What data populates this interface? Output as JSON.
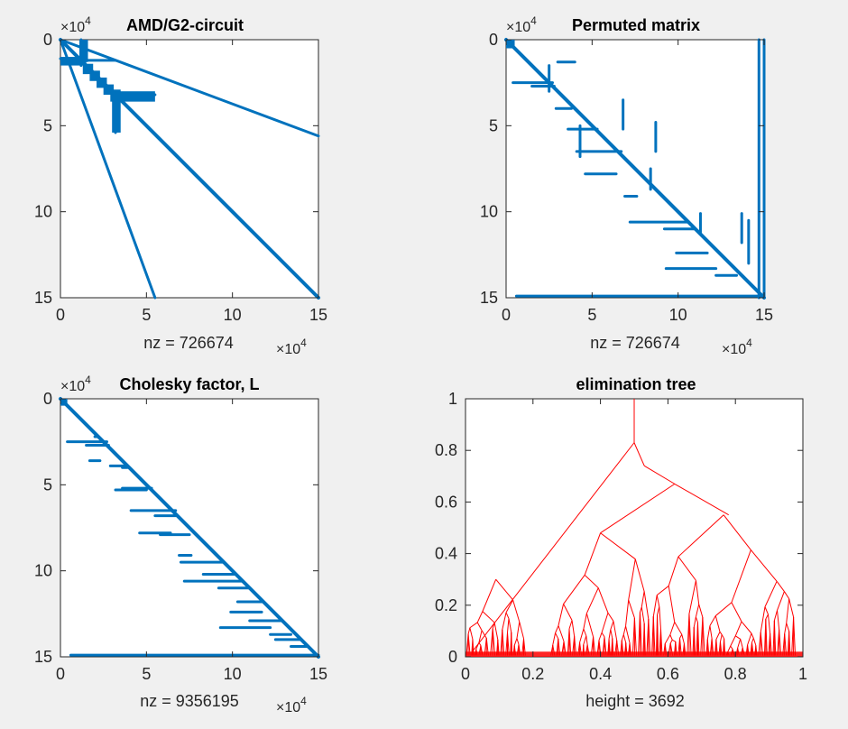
{
  "chart_data": [
    {
      "type": "scatter",
      "title": "AMD/G2-circuit",
      "xlabel": "nz = 726674",
      "x_exponent": "4",
      "y_exponent": "4",
      "xlim": [
        0,
        15
      ],
      "ylim": [
        0,
        15
      ],
      "y_reversed": true,
      "xticks": [
        0,
        5,
        10,
        15
      ],
      "yticks": [
        0,
        5,
        10,
        15
      ],
      "marker_color": "#0072bd",
      "segments": [
        [
          0,
          0,
          15,
          15
        ],
        [
          0,
          0,
          5.5,
          15
        ],
        [
          0,
          0,
          15,
          5.6
        ],
        [
          0.8,
          1.2,
          3.2,
          1.2
        ],
        [
          3.2,
          3.2,
          5.5,
          3.2
        ],
        [
          3.2,
          3.2,
          3.2,
          5.4
        ],
        [
          1.2,
          0,
          1.2,
          1.5
        ],
        [
          0,
          1.1,
          1.5,
          1.1
        ]
      ],
      "blocks": [
        [
          0,
          1.0,
          1.5,
          1.5
        ],
        [
          1.1,
          0,
          1.6,
          1.3
        ],
        [
          1.3,
          1.4,
          1.9,
          2.0
        ],
        [
          1.7,
          1.8,
          2.3,
          2.4
        ],
        [
          2.1,
          2.2,
          2.7,
          2.8
        ],
        [
          2.5,
          2.6,
          3.1,
          3.2
        ],
        [
          2.9,
          2.9,
          3.5,
          3.6
        ],
        [
          3.0,
          3.0,
          5.5,
          3.6
        ],
        [
          3.0,
          3.0,
          3.5,
          5.4
        ]
      ]
    },
    {
      "type": "scatter",
      "title": "Permuted matrix",
      "xlabel": "nz = 726674",
      "x_exponent": "4",
      "y_exponent": "4",
      "xlim": [
        0,
        15
      ],
      "ylim": [
        0,
        15
      ],
      "y_reversed": true,
      "xticks": [
        0,
        5,
        10,
        15
      ],
      "yticks": [
        0,
        5,
        10,
        15
      ],
      "marker_color": "#0072bd",
      "segments": [
        [
          0,
          0,
          15,
          15
        ],
        [
          0.6,
          14.9,
          15,
          14.9
        ],
        [
          15,
          0,
          15,
          15
        ],
        [
          14.7,
          0,
          14.7,
          15
        ],
        [
          0.4,
          2.5,
          2.7,
          2.5
        ],
        [
          1.5,
          2.7,
          2.8,
          2.7
        ],
        [
          2.9,
          4.0,
          3.8,
          4.0
        ],
        [
          3.6,
          5.2,
          5.3,
          5.2
        ],
        [
          4.1,
          6.5,
          6.7,
          6.5
        ],
        [
          4.6,
          7.8,
          6.4,
          7.8
        ],
        [
          6.9,
          9.1,
          7.6,
          9.1
        ],
        [
          7.2,
          10.6,
          10.6,
          10.6
        ],
        [
          9.2,
          11.0,
          11.0,
          11.0
        ],
        [
          9.9,
          12.4,
          11.7,
          12.4
        ],
        [
          9.3,
          13.3,
          12.2,
          13.3
        ],
        [
          12.2,
          13.7,
          13.4,
          13.7
        ],
        [
          4.3,
          5.0,
          4.3,
          6.8
        ],
        [
          6.8,
          3.5,
          6.8,
          5.2
        ],
        [
          2.5,
          1.5,
          2.5,
          3.0
        ],
        [
          8.4,
          7.5,
          8.4,
          8.7
        ],
        [
          11.3,
          10.1,
          11.3,
          11.2
        ],
        [
          13.7,
          10.1,
          13.7,
          11.8
        ],
        [
          14.1,
          10.5,
          14.1,
          13.0
        ],
        [
          8.7,
          4.8,
          8.7,
          6.5
        ],
        [
          3.0,
          1.3,
          4.0,
          1.3
        ]
      ],
      "blocks": [
        [
          0,
          0,
          0.5,
          0.5
        ]
      ]
    },
    {
      "type": "scatter",
      "title": "Cholesky factor, L",
      "xlabel": "nz = 9356195",
      "x_exponent": "4",
      "y_exponent": "4",
      "xlim": [
        0,
        15
      ],
      "ylim": [
        0,
        15
      ],
      "y_reversed": true,
      "xticks": [
        0,
        5,
        10,
        15
      ],
      "yticks": [
        0,
        5,
        10,
        15
      ],
      "marker_color": "#0072bd",
      "segments": [
        [
          0,
          0,
          15,
          15
        ],
        [
          0.6,
          14.9,
          15,
          14.9
        ],
        [
          0.4,
          2.5,
          2.7,
          2.5
        ],
        [
          1.5,
          2.7,
          2.8,
          2.7
        ],
        [
          1.7,
          3.6,
          2.3,
          3.6
        ],
        [
          2.9,
          3.9,
          3.8,
          3.9
        ],
        [
          3.6,
          4.0,
          3.9,
          4.0
        ],
        [
          3.6,
          5.2,
          5.3,
          5.2
        ],
        [
          4.1,
          6.5,
          6.7,
          6.5
        ],
        [
          4.6,
          7.8,
          6.4,
          7.8
        ],
        [
          6.9,
          9.1,
          7.6,
          9.1
        ],
        [
          7.2,
          10.6,
          10.6,
          10.6
        ],
        [
          9.2,
          11.0,
          11.0,
          11.0
        ],
        [
          9.9,
          12.4,
          11.7,
          12.4
        ],
        [
          9.3,
          13.3,
          12.2,
          13.3
        ],
        [
          12.2,
          13.7,
          13.4,
          13.7
        ],
        [
          13.4,
          14.4,
          14.4,
          14.4
        ],
        [
          3.2,
          5.3,
          5.0,
          5.3
        ],
        [
          5.8,
          7.9,
          7.5,
          7.9
        ],
        [
          7.0,
          9.5,
          9.5,
          9.5
        ],
        [
          8.3,
          10.2,
          10.2,
          10.2
        ],
        [
          10.3,
          11.8,
          11.8,
          11.8
        ],
        [
          11.0,
          12.9,
          12.9,
          12.9
        ],
        [
          12.5,
          14.0,
          14.0,
          14.0
        ],
        [
          2.0,
          2.2,
          2.2,
          2.2
        ],
        [
          5.5,
          6.8,
          6.7,
          6.8
        ]
      ],
      "blocks": [
        [
          0,
          0,
          0.4,
          0.4
        ]
      ]
    },
    {
      "type": "line",
      "title": "elimination tree",
      "xlabel": "height = 3692",
      "xlim": [
        0,
        1
      ],
      "ylim": [
        0,
        1
      ],
      "y_reversed": false,
      "xticks": [
        0,
        0.2,
        0.4,
        0.6,
        0.8,
        1
      ],
      "xtick_labels": [
        "0",
        "0.2",
        "0.4",
        "0.6",
        "0.8",
        "1"
      ],
      "yticks": [
        0,
        0.2,
        0.4,
        0.6,
        0.8,
        1
      ],
      "ytick_labels": [
        "0",
        "0.2",
        "0.4",
        "0.6",
        "0.8",
        "1"
      ],
      "line_color": "#ff0000"
    }
  ]
}
